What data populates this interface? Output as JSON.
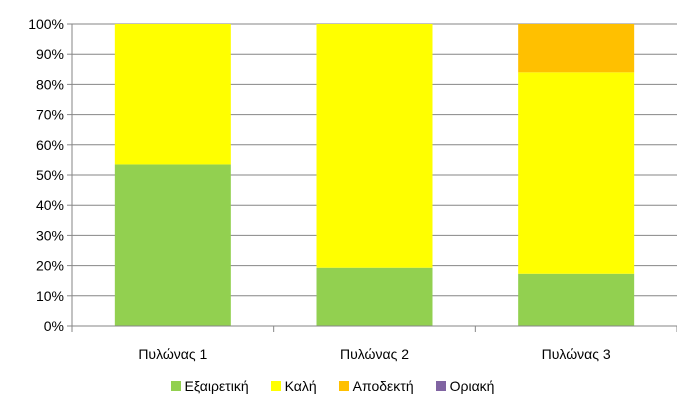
{
  "chart_data": {
    "type": "bar",
    "stacked": true,
    "percent": true,
    "categories": [
      "Πυλώνας 1",
      "Πυλώνας 2",
      "Πυλώνας 3"
    ],
    "series": [
      {
        "name": "Εξαιρετική",
        "color": "#92d050",
        "values": [
          53.5,
          19.3,
          17.3
        ]
      },
      {
        "name": "Καλή",
        "color": "#ffff00",
        "values": [
          46.5,
          80.7,
          66.7
        ]
      },
      {
        "name": "Αποδεκτή",
        "color": "#ffc000",
        "values": [
          0,
          0,
          16.0
        ]
      },
      {
        "name": "Οριακή",
        "color": "#8064a2",
        "values": [
          0,
          0,
          0
        ]
      }
    ],
    "yticks": [
      "0%",
      "10%",
      "20%",
      "30%",
      "40%",
      "50%",
      "60%",
      "70%",
      "80%",
      "90%",
      "100%"
    ],
    "ylim": [
      0,
      100
    ],
    "grid": true,
    "legend_position": "bottom"
  }
}
